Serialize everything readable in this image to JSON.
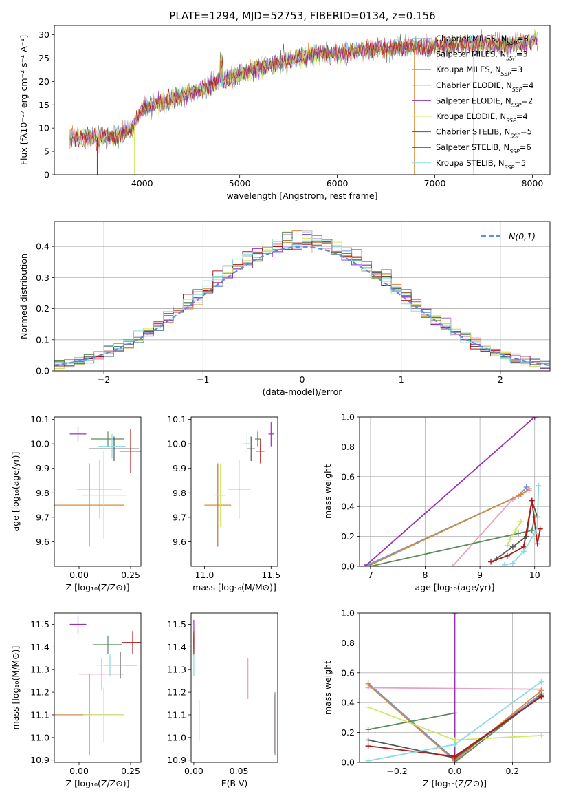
{
  "chart_data": [
    {
      "type": "line",
      "title": "PLATE=1294, MJD=52753, FIBERID=0134, z=0.156",
      "xlabel": "wavelength [Angstrom, rest frame]",
      "ylabel": "Flux [fλ10⁻¹⁷ erg cm⁻² s⁻¹ A⁻¹]",
      "xlim": [
        3100,
        8180
      ],
      "ylim": [
        0,
        32
      ],
      "xticks": [
        "4000",
        "5000",
        "6000",
        "7000",
        "8000"
      ],
      "yticks": [
        "0",
        "5",
        "10",
        "15",
        "20",
        "25",
        "30"
      ],
      "legend_position": "right",
      "series": [
        {
          "name": "Chabrier MILES, N_SSP=3",
          "color": "#6c94d6"
        },
        {
          "name": "Salpeter MILES, N_SSP=3",
          "color": "#e8a0c4"
        },
        {
          "name": "Kroupa MILES, N_SSP=3",
          "color": "#d9883a"
        },
        {
          "name": "Chabrier ELODIE, N_SSP=4",
          "color": "#5a8a5a"
        },
        {
          "name": "Salpeter ELODIE, N_SSP=2",
          "color": "#9b30b5"
        },
        {
          "name": "Kroupa ELODIE, N_SSP=4",
          "color": "#cfe860"
        },
        {
          "name": "Chabrier STELIB, N_SSP=5",
          "color": "#555555"
        },
        {
          "name": "Salpeter STELIB, N_SSP=6",
          "color": "#b01818"
        },
        {
          "name": "Kroupa STELIB, N_SSP=5",
          "color": "#88dde0"
        }
      ],
      "approx_continuum": {
        "x": [
          3250,
          3500,
          3700,
          3900,
          4000,
          4200,
          4500,
          4800,
          5000,
          5200,
          5500,
          5800,
          6000,
          6200,
          6500,
          6800,
          7000,
          7300,
          7600,
          7900,
          8050
        ],
        "y": [
          8,
          8,
          8,
          10,
          14,
          15.5,
          17.5,
          20,
          21.5,
          23,
          24.5,
          26,
          26,
          26.5,
          27,
          27.5,
          27.5,
          28,
          28,
          28,
          29
        ]
      }
    },
    {
      "type": "bar",
      "xlabel": "(data-model)/error",
      "ylabel": "Normed distribution",
      "xlim": [
        -2.5,
        2.5
      ],
      "ylim": [
        0,
        0.48
      ],
      "xticks": [
        "−2",
        "−1",
        "0",
        "1",
        "2"
      ],
      "yticks": [
        "0.0",
        "0.1",
        "0.2",
        "0.3",
        "0.4"
      ],
      "legend": "N(0,1)",
      "grid": true,
      "bin_width": 0.1,
      "approx_hist_shape": "step histograms of 9 fits approximately following N(0,1), peak near 0.42-0.46 around x=0"
    },
    {
      "type": "scatter",
      "xlabel": "Z [log₁₀(Z/Z⊙)]",
      "ylabel": "age  [log₁₀(age/yr)]",
      "xlim": [
        -0.12,
        0.3
      ],
      "ylim": [
        9.5,
        10.11
      ],
      "xticks": [
        "0.00",
        "0.25"
      ],
      "yticks": [
        "9.6",
        "9.7",
        "9.8",
        "9.9",
        "10.0",
        "10.1"
      ],
      "points": [
        {
          "s": 0,
          "x": 0.05,
          "y": 9.75,
          "xerr": 0.17,
          "yerr": 0.17
        },
        {
          "s": 1,
          "x": 0.1,
          "y": 9.815,
          "xerr": 0.11,
          "yerr": 0.12
        },
        {
          "s": 2,
          "x": 0.05,
          "y": 9.75,
          "xerr": 0.17,
          "yerr": 0.17
        },
        {
          "s": 3,
          "x": 0.14,
          "y": 10.02,
          "xerr": 0.08,
          "yerr": 0.03
        },
        {
          "s": 4,
          "x": -0.005,
          "y": 10.04,
          "xerr": 0.04,
          "yerr": 0.03
        },
        {
          "s": 5,
          "x": 0.12,
          "y": 9.79,
          "xerr": 0.11,
          "yerr": 0.18
        },
        {
          "s": 6,
          "x": 0.17,
          "y": 9.98,
          "xerr": 0.12,
          "yerr": 0.05
        },
        {
          "s": 7,
          "x": 0.25,
          "y": 9.97,
          "xerr": 0.05,
          "yerr": 0.09
        },
        {
          "s": 8,
          "x": 0.16,
          "y": 9.99,
          "xerr": 0.07,
          "yerr": 0.05
        }
      ]
    },
    {
      "type": "scatter",
      "xlabel": "mass [log₁₀(M/M⊙)]",
      "ylabel": "",
      "xlim": [
        10.9,
        11.55
      ],
      "ylim": [
        9.5,
        10.11
      ],
      "xticks": [
        "11.0",
        "11.5"
      ],
      "yticks": [
        "9.6",
        "9.7",
        "9.8",
        "9.9",
        "10.0",
        "10.1"
      ],
      "points": [
        {
          "s": 0,
          "x": 11.1,
          "y": 9.75,
          "xerr": 0.1,
          "yerr": 0.17
        },
        {
          "s": 1,
          "x": 11.26,
          "y": 9.815,
          "xerr": 0.08,
          "yerr": 0.12
        },
        {
          "s": 2,
          "x": 11.1,
          "y": 9.75,
          "xerr": 0.1,
          "yerr": 0.17
        },
        {
          "s": 3,
          "x": 11.4,
          "y": 10.02,
          "xerr": 0.02,
          "yerr": 0.03
        },
        {
          "s": 4,
          "x": 11.5,
          "y": 10.04,
          "xerr": 0.02,
          "yerr": 0.05
        },
        {
          "s": 5,
          "x": 11.12,
          "y": 9.79,
          "xerr": 0.04,
          "yerr": 0.13
        },
        {
          "s": 6,
          "x": 11.35,
          "y": 9.98,
          "xerr": 0.03,
          "yerr": 0.05
        },
        {
          "s": 7,
          "x": 11.42,
          "y": 9.97,
          "xerr": 0.03,
          "yerr": 0.05
        },
        {
          "s": 8,
          "x": 11.32,
          "y": 10.0,
          "xerr": 0.03,
          "yerr": 0.04
        }
      ]
    },
    {
      "type": "line",
      "xlabel": "age  [log₁₀(age/yr)]",
      "ylabel": "mass weight",
      "xlim": [
        6.8,
        10.28
      ],
      "ylim": [
        0,
        1.0
      ],
      "xticks": [
        "7",
        "8",
        "9",
        "10"
      ],
      "yticks": [
        "0.0",
        "0.2",
        "0.4",
        "0.6",
        "0.8",
        "1.0"
      ],
      "grid": true,
      "series": [
        {
          "s": 0,
          "x": [
            6.9,
            9.7,
            9.85
          ],
          "y": [
            0.0,
            0.47,
            0.53
          ]
        },
        {
          "s": 1,
          "x": [
            8.5,
            9.6,
            9.9
          ],
          "y": [
            0.0,
            0.45,
            0.51
          ]
        },
        {
          "s": 2,
          "x": [
            6.95,
            9.75,
            9.9
          ],
          "y": [
            0.0,
            0.48,
            0.52
          ]
        },
        {
          "s": 3,
          "x": [
            7.0,
            9.7,
            9.95,
            10.0
          ],
          "y": [
            0.0,
            0.22,
            0.24,
            0.33
          ]
        },
        {
          "s": 4,
          "x": [
            6.9,
            10.0
          ],
          "y": [
            0.0,
            1.0
          ]
        },
        {
          "s": 5,
          "x": [
            9.5,
            9.55,
            9.65,
            9.75
          ],
          "y": [
            0.14,
            0.18,
            0.24,
            0.3
          ]
        },
        {
          "s": 6,
          "x": [
            9.3,
            9.6,
            9.85,
            9.95,
            10.05
          ],
          "y": [
            0.05,
            0.13,
            0.2,
            0.44,
            0.33
          ]
        },
        {
          "s": 7,
          "x": [
            9.2,
            9.5,
            9.8,
            9.95,
            10.05,
            10.1
          ],
          "y": [
            0.03,
            0.07,
            0.13,
            0.44,
            0.15,
            0.25
          ]
        },
        {
          "s": 8,
          "x": [
            9.45,
            9.6,
            9.8,
            10.0,
            10.05,
            10.07
          ],
          "y": [
            0.01,
            0.02,
            0.1,
            0.22,
            0.27,
            0.54
          ]
        }
      ]
    },
    {
      "type": "scatter",
      "xlabel": "Z [log₁₀(Z/Z⊙)]",
      "ylabel": "mass [log₁₀(M/M⊙)]",
      "xlim": [
        -0.12,
        0.3
      ],
      "ylim": [
        10.89,
        11.55
      ],
      "xticks": [
        "0.00",
        "0.25"
      ],
      "yticks": [
        "10.9",
        "11.0",
        "11.1",
        "11.2",
        "11.3",
        "11.4",
        "11.5"
      ],
      "points": [
        {
          "s": 0,
          "x": 0.05,
          "y": 11.1,
          "xerr": 0.17,
          "yerr": 0.18
        },
        {
          "s": 1,
          "x": 0.11,
          "y": 11.28,
          "xerr": 0.11,
          "yerr": 0.07
        },
        {
          "s": 2,
          "x": 0.05,
          "y": 11.1,
          "xerr": 0.17,
          "yerr": 0.18
        },
        {
          "s": 3,
          "x": 0.14,
          "y": 11.41,
          "xerr": 0.07,
          "yerr": 0.04
        },
        {
          "s": 4,
          "x": -0.005,
          "y": 11.5,
          "xerr": 0.04,
          "yerr": 0.04
        },
        {
          "s": 5,
          "x": 0.12,
          "y": 11.1,
          "xerr": 0.1,
          "yerr": 0.12
        },
        {
          "s": 6,
          "x": 0.2,
          "y": 11.32,
          "xerr": 0.08,
          "yerr": 0.06
        },
        {
          "s": 7,
          "x": 0.26,
          "y": 11.42,
          "xerr": 0.05,
          "yerr": 0.05
        },
        {
          "s": 8,
          "x": 0.15,
          "y": 11.32,
          "xerr": 0.07,
          "yerr": 0.05
        }
      ]
    },
    {
      "type": "scatter",
      "xlabel": "E(B-V)",
      "ylabel": "",
      "xlim": [
        -0.003,
        0.093
      ],
      "ylim": [
        10.89,
        11.55
      ],
      "xticks": [
        "0.00",
        "0.05"
      ],
      "yticks": [
        "10.9",
        "11.0",
        "11.1",
        "11.2",
        "11.3",
        "11.4",
        "11.5"
      ],
      "points": [
        {
          "s": 0,
          "x": 0.09,
          "y": 11.06,
          "xerr": 0.0,
          "yerr": 0.14
        },
        {
          "s": 1,
          "x": 0.06,
          "y": 11.26,
          "xerr": 0.0,
          "yerr": 0.09
        },
        {
          "s": 2,
          "x": 0.089,
          "y": 11.06,
          "xerr": 0.0,
          "yerr": 0.13
        },
        {
          "s": 3,
          "x": 0.0,
          "y": 11.4,
          "xerr": 0.0,
          "yerr": 0.04
        },
        {
          "s": 4,
          "x": 0.0,
          "y": 11.47,
          "xerr": 0.0,
          "yerr": 0.05
        },
        {
          "s": 5,
          "x": 0.006,
          "y": 11.075,
          "xerr": 0.0,
          "yerr": 0.09
        },
        {
          "s": 6,
          "x": 0.0,
          "y": 11.42,
          "xerr": 0.0,
          "yerr": 0.03
        },
        {
          "s": 7,
          "x": 0.0,
          "y": 11.42,
          "xerr": 0.0,
          "yerr": 0.05
        },
        {
          "s": 8,
          "x": 0.0,
          "y": 11.32,
          "xerr": 0.0,
          "yerr": 0.05
        }
      ]
    },
    {
      "type": "line",
      "xlabel": "Z [log₁₀(Z/Z⊙)]",
      "ylabel": "mass weight",
      "xlim": [
        -0.33,
        0.33
      ],
      "ylim": [
        0,
        1.0
      ],
      "xticks": [
        "−0.2",
        "0.0",
        "0.2"
      ],
      "yticks": [
        "0.0",
        "0.2",
        "0.4",
        "0.6",
        "0.8",
        "1.0"
      ],
      "grid": true,
      "series": [
        {
          "s": 0,
          "x": [
            -0.3,
            0.0,
            0.3
          ],
          "y": [
            0.53,
            0.02,
            0.46
          ]
        },
        {
          "s": 1,
          "x": [
            -0.3,
            0.3
          ],
          "y": [
            0.5,
            0.49
          ]
        },
        {
          "s": 2,
          "x": [
            -0.3,
            0.0,
            0.3
          ],
          "y": [
            0.52,
            0.01,
            0.48
          ]
        },
        {
          "s": 3,
          "x": [
            -0.3,
            0.0,
            0.0,
            0.3
          ],
          "y": [
            0.22,
            0.33,
            0.0,
            0.45
          ]
        },
        {
          "s": 4,
          "x": [
            0.0,
            0.0
          ],
          "y": [
            0.0,
            1.0
          ]
        },
        {
          "s": 5,
          "x": [
            -0.3,
            0.0,
            0.3
          ],
          "y": [
            0.37,
            0.15,
            0.18
          ]
        },
        {
          "s": 6,
          "x": [
            -0.3,
            0.0,
            0.3
          ],
          "y": [
            0.15,
            0.03,
            0.44
          ]
        },
        {
          "s": 7,
          "x": [
            -0.3,
            0.0,
            0.3
          ],
          "y": [
            0.11,
            0.04,
            0.44
          ]
        },
        {
          "s": 8,
          "x": [
            -0.3,
            0.0,
            0.3
          ],
          "y": [
            0.01,
            0.12,
            0.54
          ]
        }
      ]
    }
  ]
}
